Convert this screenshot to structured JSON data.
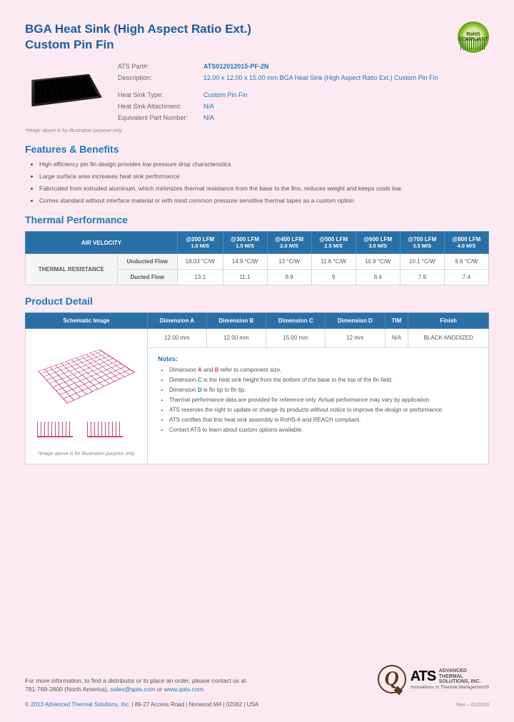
{
  "title_line1": "BGA Heat Sink (High Aspect Ratio Ext.)",
  "title_line2": "Custom Pin Fin",
  "rohs": "RoHS COMPLIANT",
  "specs": {
    "part_label": "ATS Part#:",
    "part_val": "ATS012012015-PF-2N",
    "desc_label": "Description:",
    "desc_val": "12.00 x 12.00 x 15.00 mm  BGA Heat Sink (High Aspect Ratio Ext.) Custom Pin Fin",
    "type_label": "Heat Sink Type:",
    "type_val": "Custom Pin Fin",
    "attach_label": "Heat Sink Attachment:",
    "attach_val": "N/A",
    "equiv_label": "Equivalent Part Number:",
    "equiv_val": "N/A"
  },
  "img_note": "*Image above is for illustration purpose only",
  "features_h": "Features & Benefits",
  "features": [
    "High efficiency pin fin design provides low pressure drop characteristics",
    "Large surface area increases heat sink performance",
    "Fabricated from extruded aluminum, which minimizes thermal resistance from the base to the fins, reduces weight and keeps costs low",
    "Comes standard without interface material or with most common pressure sensitive thermal tapes as a custom option"
  ],
  "thermal_h": "Thermal Performance",
  "thermal": {
    "air_velocity": "AIR VELOCITY",
    "cols": [
      {
        "top": "@200 LFM",
        "bot": "1.0 M/S"
      },
      {
        "top": "@300 LFM",
        "bot": "1.5 M/S"
      },
      {
        "top": "@400 LFM",
        "bot": "2.0 M/S"
      },
      {
        "top": "@500 LFM",
        "bot": "2.5 M/S"
      },
      {
        "top": "@600 LFM",
        "bot": "3.0 M/S"
      },
      {
        "top": "@700 LFM",
        "bot": "3.5 M/S"
      },
      {
        "top": "@800 LFM",
        "bot": "4.0 M/S"
      }
    ],
    "row_header": "THERMAL RESISTANCE",
    "unducted_label": "Unducted Flow",
    "unducted": [
      "18.03 °C/W",
      "14.9 °C/W",
      "13 °C/W",
      "11.8 °C/W",
      "10.9 °C/W",
      "10.1 °C/W",
      "9.6 °C/W"
    ],
    "ducted_label": "Ducted Flow",
    "ducted": [
      "13.1",
      "11.1",
      "9.9",
      "9",
      "8.4",
      "7.9",
      "7.4"
    ]
  },
  "detail_h": "Product Detail",
  "detail": {
    "cols": [
      "Schematic Image",
      "Dimension A",
      "Dimension B",
      "Dimension C",
      "Dimension D",
      "TIM",
      "Finish"
    ],
    "vals": [
      "12.00 mm",
      "12.00 mm",
      "15.00 mm",
      "12 mm",
      "N/A",
      "BLACK ANODIZED"
    ]
  },
  "schematic_note": "*Image above is for illustration purpose only.",
  "notes_h": "Notes:",
  "notes": [
    "Dimension <span class='dim-a'>A</span> and <span class='dim-b'>B</span> refer to component size.",
    "Dimension <span class='dim-c'>C</span> is the heat sink height from the bottom of the base to the top of the fin field.",
    "Dimension <span class='dim-d'>D</span> is fin tip to fin tip.",
    "Thermal performance data are provided for reference only. Actual performance may vary by application.",
    "ATS reserves the right to update or change its products without notice to improve the design or performance.",
    "ATS certifies that this heat sink assembly is RoHS-6 and REACH compliant.",
    "Contact ATS to learn about custom options available."
  ],
  "footer": {
    "line1": "For more information, to find a distributor or to place an order, please contact us at",
    "phone": "781-769-2800 (North America),",
    "email": "sales@qats.com",
    "or": " or ",
    "web": "www.qats.com",
    "copyright": "© 2013 Advanced Thermal Solutions, Inc.",
    "addr": " | 89-27 Access Road | Norwood MA | 02062 | USA"
  },
  "logo": {
    "ats": "ATS",
    "full1": "ADVANCED",
    "full2": "THERMAL",
    "full3": "SOLUTIONS, INC.",
    "tag": "Innovations in Thermal Management®"
  },
  "rev": "Rev – 01/2013"
}
